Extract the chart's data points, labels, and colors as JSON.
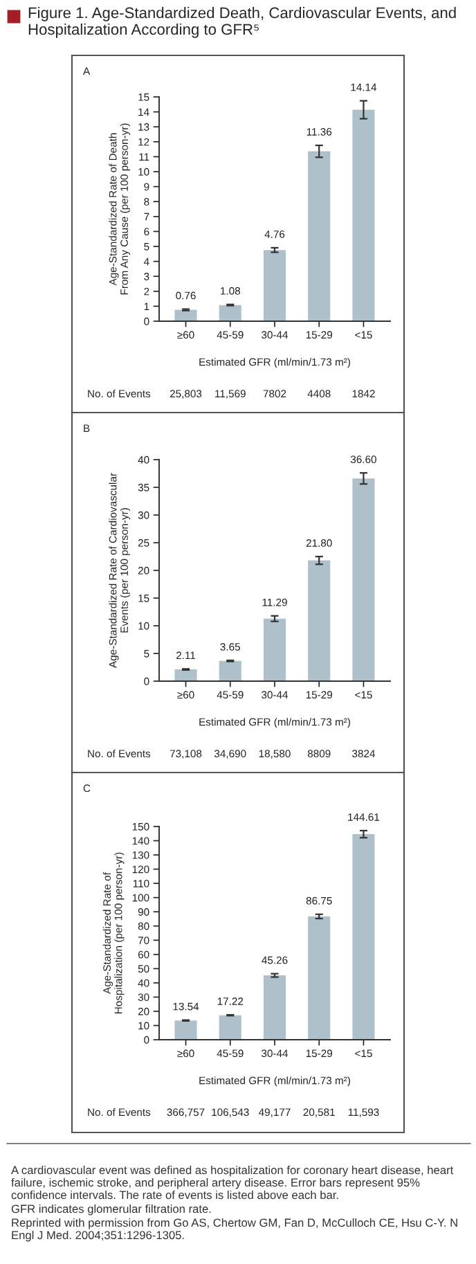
{
  "chart_data": [
    {
      "type": "bar",
      "title": "Figure 1. Age-Standardized Death, Cardiovascular Events, and Hospitalization According to GFR⁵",
      "subtitle": "A",
      "xlabel": "Estimated GFR (ml/min/1.73 m²)",
      "ylabel": "Age-Standardized Rate of Death\nFrom Any Cause (per 100 person-yr)",
      "categories": [
        "≥60",
        "45-59",
        "30-44",
        "15-29",
        "<15"
      ],
      "values": [
        0.76,
        1.08,
        4.76,
        11.36,
        14.14
      ],
      "color": "#a9c2d0",
      "errors": [
        0.05,
        0.04,
        0.15,
        0.4,
        0.6
      ],
      "ylim": [
        0,
        15
      ],
      "yticks": [
        0,
        1,
        2,
        3,
        4,
        5,
        6,
        7,
        8,
        9,
        10,
        11,
        12,
        13,
        14,
        15
      ],
      "data_labels": true,
      "grid": false,
      "legend": false,
      "annotations": [
        "No. of Events",
        "25,803",
        "11,569",
        "7802",
        "4408",
        "1842"
      ]
    },
    {
      "type": "bar",
      "subtitle": "B",
      "xlabel": "Estimated GFR (ml/min/1.73 m²)",
      "ylabel": "Age-Standardized Rate of Cardiovascular\nEvents (per 100 person-yr)",
      "categories": [
        "≥60",
        "45-59",
        "30-44",
        "15-29",
        "<15"
      ],
      "values": [
        2.11,
        3.65,
        11.29,
        21.8,
        36.6
      ],
      "color": "#a9c2d0",
      "value_labels": [
        "2.11",
        "3.65",
        "11.29",
        "21.80",
        "36.60"
      ],
      "errors": [
        0.1,
        0.1,
        0.5,
        0.7,
        1.0
      ],
      "ylim": [
        0,
        40
      ],
      "yticks": [
        0,
        5,
        10,
        15,
        20,
        25,
        30,
        35,
        40
      ],
      "grid": false,
      "legend": false,
      "annotations": [
        "No. of Events",
        "73,108",
        "34,690",
        "18,580",
        "8809",
        "3824"
      ]
    },
    {
      "type": "bar",
      "subtitle": "C",
      "xlabel": "Estimated GFR (ml/min/1.73 m²)",
      "ylabel": "Age-Standardized Rate of\nHospitalization (per 100 person-yr)",
      "categories": [
        "≥60",
        "45-59",
        "30-44",
        "15-29",
        "<15"
      ],
      "values": [
        13.54,
        17.22,
        45.26,
        86.75,
        144.61
      ],
      "color": "#a9c2d0",
      "errors": [
        0.3,
        0.3,
        1.2,
        1.5,
        2.5
      ],
      "ylim": [
        0,
        150
      ],
      "yticks": [
        0,
        10,
        20,
        30,
        40,
        50,
        60,
        70,
        80,
        90,
        100,
        110,
        120,
        130,
        140,
        150
      ],
      "data_labels": true,
      "grid": false,
      "legend": false,
      "annotations": [
        "No. of Events",
        "366,757",
        "106,543",
        "49,177",
        "20,581",
        "11,593",
        "A cardiovascular event was defined as hospitalization for coronary heart disease, heart failure, ischemic stroke, and peripheral artery disease. Error bars represent 95% confidence intervals. The rate of events is listed above each bar.",
        "GFR indicates glomerular filtration rate.",
        "Reprinted with permission from Go AS, Chertow GM, Fan D, McCulloch CE, Hsu C-Y. N Engl J Med. 2004;351:1296-1305."
      ]
    }
  ]
}
